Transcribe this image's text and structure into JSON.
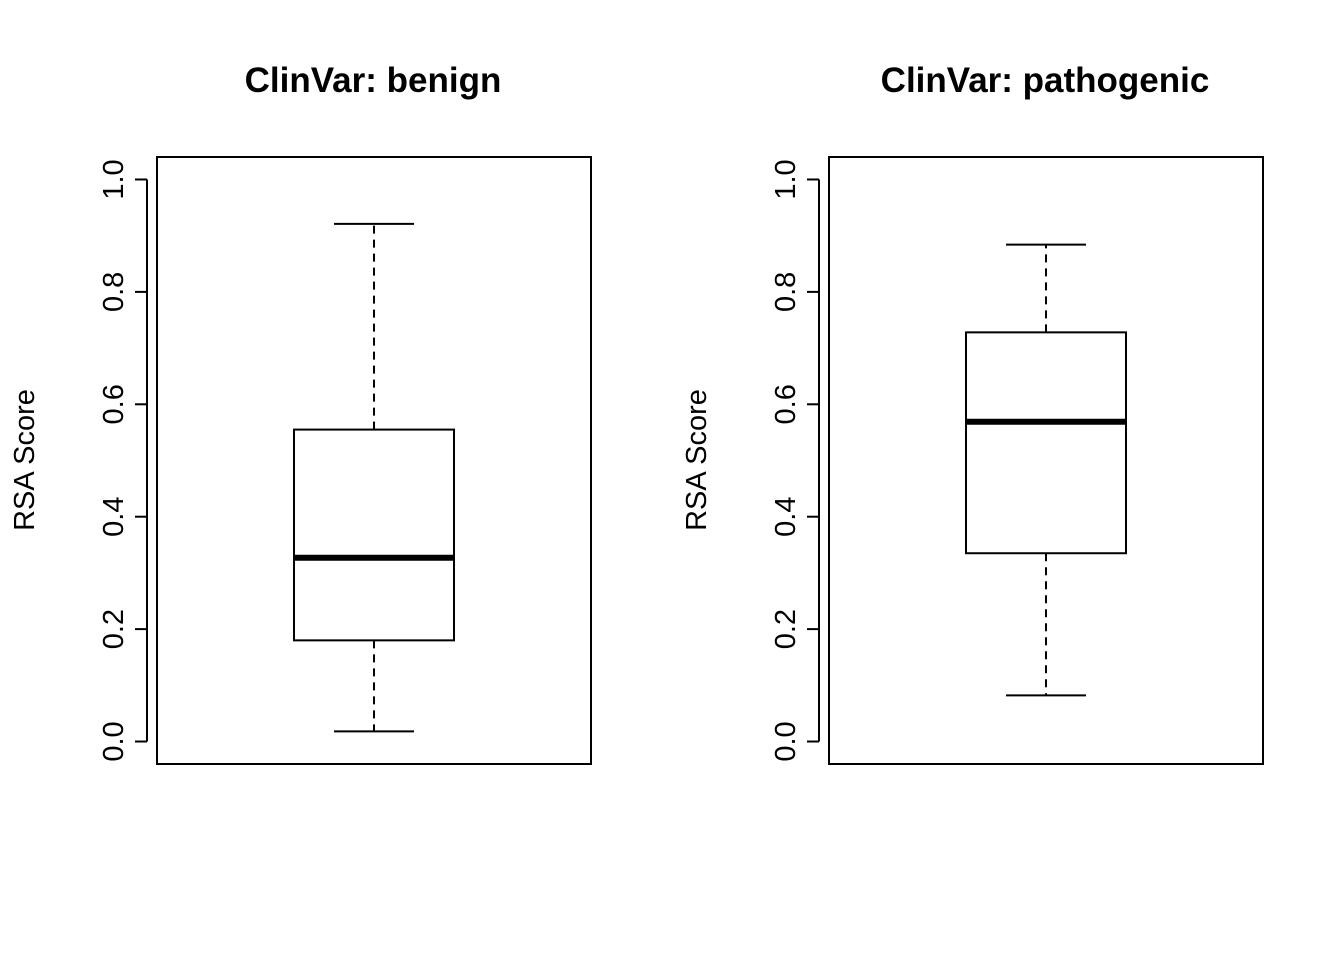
{
  "chart_data": [
    {
      "type": "boxplot",
      "title": "ClinVar: benign",
      "xlabel": "",
      "ylabel": "RSA Score",
      "ylim": [
        -0.04,
        1.04
      ],
      "yticks": [
        0.0,
        0.2,
        0.4,
        0.6,
        0.8,
        1.0
      ],
      "ytick_labels": [
        "0.0",
        "0.2",
        "0.4",
        "0.6",
        "0.8",
        "1.0"
      ],
      "box": {
        "whisker_low": 0.018,
        "q1": 0.18,
        "median": 0.327,
        "q3": 0.555,
        "whisker_high": 0.921
      },
      "grid": false,
      "legend": "none"
    },
    {
      "type": "boxplot",
      "title": "ClinVar: pathogenic",
      "xlabel": "",
      "ylabel": "RSA Score",
      "ylim": [
        -0.04,
        1.04
      ],
      "yticks": [
        0.0,
        0.2,
        0.4,
        0.6,
        0.8,
        1.0
      ],
      "ytick_labels": [
        "0.0",
        "0.2",
        "0.4",
        "0.6",
        "0.8",
        "1.0"
      ],
      "box": {
        "whisker_low": 0.082,
        "q1": 0.335,
        "median": 0.569,
        "q3": 0.728,
        "whisker_high": 0.884
      },
      "grid": false,
      "legend": "none"
    }
  ],
  "colors": {
    "stroke": "#000000",
    "background": "#ffffff"
  }
}
